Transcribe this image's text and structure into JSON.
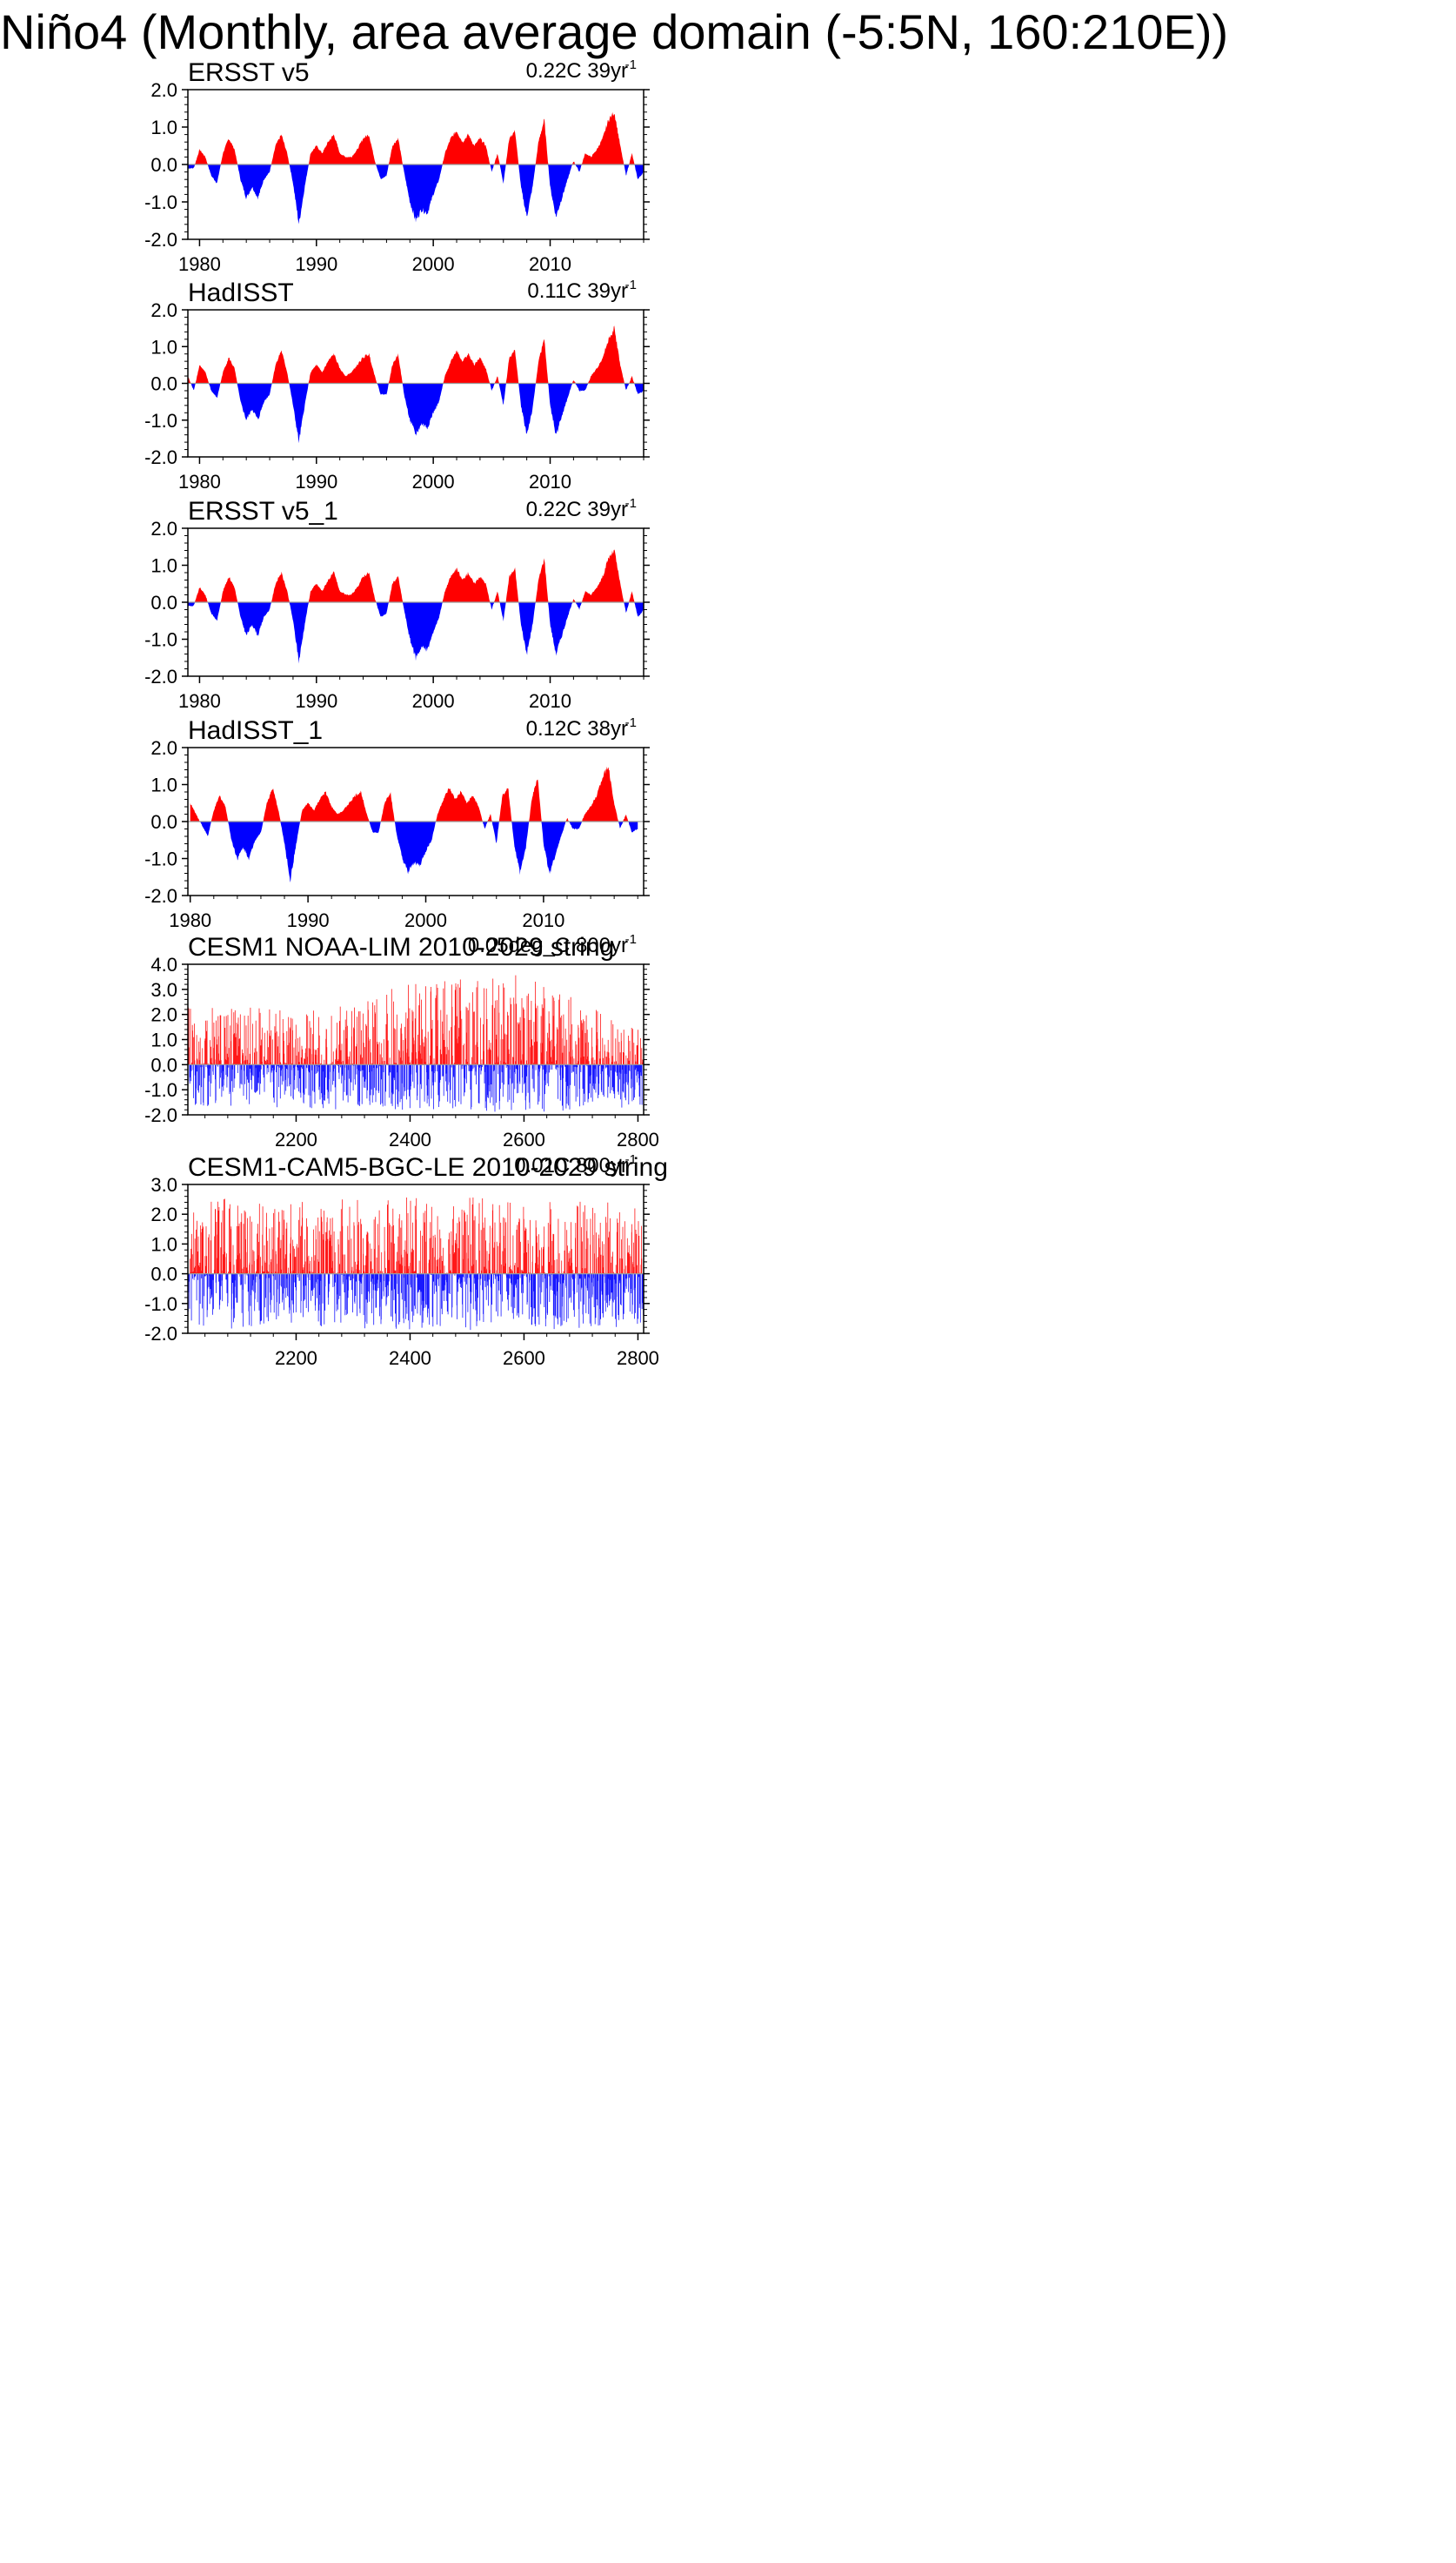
{
  "title": "Niño4 (Monthly, area average domain (-5:5N, 160:210E))",
  "colors": {
    "positive": "#ff0000",
    "negative": "#0000ff",
    "axis": "#000000",
    "zero_line": "#9a9a9a"
  },
  "chart_data": [
    {
      "type": "area",
      "name": "ERSST v5",
      "trend": {
        "text": "0.22C 39yr",
        "exp": "-1"
      },
      "xlim": [
        1979,
        2018
      ],
      "ylim": [
        -2.0,
        2.0
      ],
      "yticks": [
        -2.0,
        -1.0,
        0.0,
        1.0,
        2.0
      ],
      "yticklabels": [
        "-2.0",
        "-1.0",
        "0.0",
        "1.0",
        "2.0"
      ],
      "xticks": [
        1980,
        1990,
        2000,
        2010
      ],
      "xticklabels": [
        "1980",
        "1990",
        "2000",
        "2010"
      ],
      "x": [
        1979.0,
        1979.5,
        1980.0,
        1980.5,
        1981.0,
        1981.5,
        1982.0,
        1982.5,
        1983.0,
        1983.5,
        1984.0,
        1984.5,
        1985.0,
        1985.5,
        1986.0,
        1986.5,
        1987.0,
        1987.5,
        1988.0,
        1988.5,
        1989.0,
        1989.5,
        1990.0,
        1990.5,
        1991.0,
        1991.5,
        1992.0,
        1992.5,
        1993.0,
        1993.5,
        1994.0,
        1994.5,
        1995.0,
        1995.5,
        1996.0,
        1996.5,
        1997.0,
        1997.5,
        1998.0,
        1998.5,
        1999.0,
        1999.5,
        2000.0,
        2000.5,
        2001.0,
        2001.5,
        2002.0,
        2002.5,
        2003.0,
        2003.5,
        2004.0,
        2004.5,
        2005.0,
        2005.5,
        2006.0,
        2006.5,
        2007.0,
        2007.5,
        2008.0,
        2008.5,
        2009.0,
        2009.5,
        2010.0,
        2010.5,
        2011.0,
        2011.5,
        2012.0,
        2012.5,
        2013.0,
        2013.5,
        2014.0,
        2014.5,
        2015.0,
        2015.5,
        2016.0,
        2016.5,
        2017.0,
        2017.5,
        2018.0
      ],
      "values": [
        -0.1,
        -0.1,
        0.4,
        0.2,
        -0.3,
        -0.5,
        0.3,
        0.7,
        0.4,
        -0.4,
        -0.9,
        -0.6,
        -0.9,
        -0.4,
        -0.2,
        0.5,
        0.8,
        0.3,
        -0.5,
        -1.6,
        -0.6,
        0.3,
        0.5,
        0.3,
        0.6,
        0.8,
        0.3,
        0.2,
        0.2,
        0.4,
        0.7,
        0.8,
        0.1,
        -0.4,
        -0.3,
        0.5,
        0.7,
        -0.2,
        -1.0,
        -1.5,
        -1.2,
        -1.3,
        -0.8,
        -0.4,
        0.3,
        0.7,
        0.9,
        0.6,
        0.8,
        0.5,
        0.7,
        0.5,
        -0.2,
        0.3,
        -0.5,
        0.7,
        0.9,
        -0.6,
        -1.4,
        -0.6,
        0.6,
        1.2,
        -0.6,
        -1.4,
        -0.9,
        -0.4,
        0.1,
        -0.2,
        0.3,
        0.2,
        0.4,
        0.7,
        1.2,
        1.4,
        0.5,
        -0.3,
        0.3,
        -0.4,
        -0.2
      ]
    },
    {
      "type": "area",
      "name": "HadISST",
      "trend": {
        "text": "0.11C 39yr",
        "exp": "-1"
      },
      "xlim": [
        1979,
        2018
      ],
      "ylim": [
        -2.0,
        2.0
      ],
      "yticks": [
        -2.0,
        -1.0,
        0.0,
        1.0,
        2.0
      ],
      "yticklabels": [
        "-2.0",
        "-1.0",
        "0.0",
        "1.0",
        "2.0"
      ],
      "xticks": [
        1980,
        1990,
        2000,
        2010
      ],
      "xticklabels": [
        "1980",
        "1990",
        "2000",
        "2010"
      ],
      "x": [
        1979.0,
        1979.5,
        1980.0,
        1980.5,
        1981.0,
        1981.5,
        1982.0,
        1982.5,
        1983.0,
        1983.5,
        1984.0,
        1984.5,
        1985.0,
        1985.5,
        1986.0,
        1986.5,
        1987.0,
        1987.5,
        1988.0,
        1988.5,
        1989.0,
        1989.5,
        1990.0,
        1990.5,
        1991.0,
        1991.5,
        1992.0,
        1992.5,
        1993.0,
        1993.5,
        1994.0,
        1994.5,
        1995.0,
        1995.5,
        1996.0,
        1996.5,
        1997.0,
        1997.5,
        1998.0,
        1998.5,
        1999.0,
        1999.5,
        2000.0,
        2000.5,
        2001.0,
        2001.5,
        2002.0,
        2002.5,
        2003.0,
        2003.5,
        2004.0,
        2004.5,
        2005.0,
        2005.5,
        2006.0,
        2006.5,
        2007.0,
        2007.5,
        2008.0,
        2008.5,
        2009.0,
        2009.5,
        2010.0,
        2010.5,
        2011.0,
        2011.5,
        2012.0,
        2012.5,
        2013.0,
        2013.5,
        2014.0,
        2014.5,
        2015.0,
        2015.5,
        2016.0,
        2016.5,
        2017.0,
        2017.5,
        2018.0
      ],
      "values": [
        0.2,
        -0.2,
        0.5,
        0.3,
        -0.2,
        -0.4,
        0.3,
        0.7,
        0.4,
        -0.5,
        -1.0,
        -0.7,
        -1.0,
        -0.5,
        -0.3,
        0.5,
        0.9,
        0.3,
        -0.6,
        -1.6,
        -0.6,
        0.3,
        0.5,
        0.3,
        0.6,
        0.8,
        0.4,
        0.2,
        0.3,
        0.5,
        0.7,
        0.8,
        0.2,
        -0.3,
        -0.3,
        0.5,
        0.8,
        -0.3,
        -1.0,
        -1.4,
        -1.1,
        -1.2,
        -0.8,
        -0.5,
        0.2,
        0.6,
        0.9,
        0.6,
        0.8,
        0.5,
        0.7,
        0.4,
        -0.2,
        0.2,
        -0.6,
        0.7,
        0.9,
        -0.6,
        -1.4,
        -0.7,
        0.6,
        1.2,
        -0.6,
        -1.4,
        -0.9,
        -0.4,
        0.1,
        -0.2,
        -0.2,
        0.2,
        0.4,
        0.7,
        1.2,
        1.5,
        0.5,
        -0.2,
        0.2,
        -0.3,
        -0.2
      ]
    },
    {
      "type": "area",
      "name": "ERSST v5_1",
      "trend": {
        "text": "0.22C 39yr",
        "exp": "-1"
      },
      "xlim": [
        1979,
        2018
      ],
      "ylim": [
        -2.0,
        2.0
      ],
      "yticks": [
        -2.0,
        -1.0,
        0.0,
        1.0,
        2.0
      ],
      "yticklabels": [
        "-2.0",
        "-1.0",
        "0.0",
        "1.0",
        "2.0"
      ],
      "xticks": [
        1980,
        1990,
        2000,
        2010
      ],
      "xticklabels": [
        "1980",
        "1990",
        "2000",
        "2010"
      ],
      "x": [
        1979.0,
        1979.5,
        1980.0,
        1980.5,
        1981.0,
        1981.5,
        1982.0,
        1982.5,
        1983.0,
        1983.5,
        1984.0,
        1984.5,
        1985.0,
        1985.5,
        1986.0,
        1986.5,
        1987.0,
        1987.5,
        1988.0,
        1988.5,
        1989.0,
        1989.5,
        1990.0,
        1990.5,
        1991.0,
        1991.5,
        1992.0,
        1992.5,
        1993.0,
        1993.5,
        1994.0,
        1994.5,
        1995.0,
        1995.5,
        1996.0,
        1996.5,
        1997.0,
        1997.5,
        1998.0,
        1998.5,
        1999.0,
        1999.5,
        2000.0,
        2000.5,
        2001.0,
        2001.5,
        2002.0,
        2002.5,
        2003.0,
        2003.5,
        2004.0,
        2004.5,
        2005.0,
        2005.5,
        2006.0,
        2006.5,
        2007.0,
        2007.5,
        2008.0,
        2008.5,
        2009.0,
        2009.5,
        2010.0,
        2010.5,
        2011.0,
        2011.5,
        2012.0,
        2012.5,
        2013.0,
        2013.5,
        2014.0,
        2014.5,
        2015.0,
        2015.5,
        2016.0,
        2016.5,
        2017.0,
        2017.5,
        2018.0
      ],
      "values": [
        -0.1,
        -0.1,
        0.4,
        0.2,
        -0.3,
        -0.5,
        0.3,
        0.7,
        0.4,
        -0.4,
        -0.9,
        -0.6,
        -0.9,
        -0.4,
        -0.2,
        0.5,
        0.8,
        0.3,
        -0.5,
        -1.6,
        -0.6,
        0.3,
        0.5,
        0.3,
        0.6,
        0.8,
        0.3,
        0.2,
        0.2,
        0.4,
        0.7,
        0.8,
        0.1,
        -0.4,
        -0.3,
        0.5,
        0.7,
        -0.2,
        -1.0,
        -1.5,
        -1.2,
        -1.3,
        -0.8,
        -0.4,
        0.3,
        0.7,
        0.9,
        0.6,
        0.8,
        0.5,
        0.7,
        0.5,
        -0.2,
        0.3,
        -0.5,
        0.7,
        0.9,
        -0.6,
        -1.4,
        -0.6,
        0.6,
        1.2,
        -0.6,
        -1.4,
        -0.9,
        -0.4,
        0.1,
        -0.2,
        0.3,
        0.2,
        0.4,
        0.7,
        1.2,
        1.4,
        0.5,
        -0.3,
        0.3,
        -0.4,
        -0.2
      ]
    },
    {
      "type": "area",
      "name": "HadISST_1",
      "trend": {
        "text": "0.12C 38yr",
        "exp": "-1"
      },
      "xlim": [
        1979.8,
        2018.5
      ],
      "ylim": [
        -2.0,
        2.0
      ],
      "yticks": [
        -2.0,
        -1.0,
        0.0,
        1.0,
        2.0
      ],
      "yticklabels": [
        "-2.0",
        "-1.0",
        "0.0",
        "1.0",
        "2.0"
      ],
      "xticks": [
        1980,
        1990,
        2000,
        2010
      ],
      "xticklabels": [
        "1980",
        "1990",
        "2000",
        "2010"
      ],
      "x": [
        1980.0,
        1980.5,
        1981.0,
        1981.5,
        1982.0,
        1982.5,
        1983.0,
        1983.5,
        1984.0,
        1984.5,
        1985.0,
        1985.5,
        1986.0,
        1986.5,
        1987.0,
        1987.5,
        1988.0,
        1988.5,
        1989.0,
        1989.5,
        1990.0,
        1990.5,
        1991.0,
        1991.5,
        1992.0,
        1992.5,
        1993.0,
        1993.5,
        1994.0,
        1994.5,
        1995.0,
        1995.5,
        1996.0,
        1996.5,
        1997.0,
        1997.5,
        1998.0,
        1998.5,
        1999.0,
        1999.5,
        2000.0,
        2000.5,
        2001.0,
        2001.5,
        2002.0,
        2002.5,
        2003.0,
        2003.5,
        2004.0,
        2004.5,
        2005.0,
        2005.5,
        2006.0,
        2006.5,
        2007.0,
        2007.5,
        2008.0,
        2008.5,
        2009.0,
        2009.5,
        2010.0,
        2010.5,
        2011.0,
        2011.5,
        2012.0,
        2012.5,
        2013.0,
        2013.5,
        2014.0,
        2014.5,
        2015.0,
        2015.5,
        2016.0,
        2016.5,
        2017.0,
        2017.5,
        2018.0
      ],
      "values": [
        0.5,
        0.2,
        -0.1,
        -0.4,
        0.3,
        0.7,
        0.4,
        -0.5,
        -1.0,
        -0.7,
        -1.0,
        -0.5,
        -0.3,
        0.5,
        0.9,
        0.3,
        -0.6,
        -1.6,
        -0.6,
        0.3,
        0.5,
        0.3,
        0.6,
        0.8,
        0.4,
        0.2,
        0.3,
        0.5,
        0.7,
        0.8,
        0.2,
        -0.3,
        -0.3,
        0.5,
        0.8,
        -0.3,
        -1.0,
        -1.4,
        -1.1,
        -1.2,
        -0.8,
        -0.5,
        0.2,
        0.6,
        0.9,
        0.6,
        0.8,
        0.5,
        0.7,
        0.4,
        -0.2,
        0.2,
        -0.6,
        0.7,
        0.9,
        -0.6,
        -1.4,
        -0.7,
        0.6,
        1.2,
        -0.6,
        -1.4,
        -0.9,
        -0.4,
        0.1,
        -0.2,
        -0.2,
        0.2,
        0.4,
        0.7,
        1.2,
        1.5,
        0.5,
        -0.2,
        0.2,
        -0.3,
        -0.2
      ]
    },
    {
      "type": "area",
      "name": "CESM1 NOAA-LIM 2010-2029 string",
      "trend": {
        "text": "0.05deg_C 800yr",
        "exp": "-1"
      },
      "xlim": [
        2010,
        2810
      ],
      "ylim": [
        -2.0,
        4.0
      ],
      "yticks": [
        -2.0,
        -1.0,
        0.0,
        1.0,
        2.0,
        3.0,
        4.0
      ],
      "yticklabels": [
        "-2.0",
        "-1.0",
        "0.0",
        "1.0",
        "2.0",
        "3.0",
        "4.0"
      ],
      "xticks": [
        2200,
        2400,
        2600,
        2800
      ],
      "xticklabels": [
        "2200",
        "2400",
        "2600",
        "2800"
      ],
      "x": [
        2010,
        2060,
        2110,
        2160,
        2210,
        2260,
        2310,
        2360,
        2410,
        2460,
        2510,
        2560,
        2610,
        2660,
        2710,
        2760,
        2810
      ],
      "max_values": [
        2.3,
        2.3,
        2.3,
        2.2,
        2.2,
        2.3,
        2.4,
        3.1,
        3.3,
        3.4,
        3.5,
        3.6,
        3.7,
        3.0,
        2.5,
        1.8,
        1.5
      ],
      "min_values": [
        -1.6,
        -1.7,
        -1.7,
        -1.7,
        -1.7,
        -1.8,
        -1.8,
        -1.8,
        -1.8,
        -1.8,
        -1.8,
        -1.9,
        -1.9,
        -1.9,
        -1.8,
        -1.8,
        -1.6
      ]
    },
    {
      "type": "area",
      "name": "CESM1-CAM5-BGC-LE 2010-2029 string",
      "trend": {
        "text": "0.01C 800yr",
        "exp": "-1"
      },
      "xlim": [
        2010,
        2810
      ],
      "ylim": [
        -2.0,
        3.0
      ],
      "yticks": [
        -2.0,
        -1.0,
        0.0,
        1.0,
        2.0,
        3.0
      ],
      "yticklabels": [
        "-2.0",
        "-1.0",
        "0.0",
        "1.0",
        "2.0",
        "3.0"
      ],
      "xticks": [
        2200,
        2400,
        2600,
        2800
      ],
      "xticklabels": [
        "2200",
        "2400",
        "2600",
        "2800"
      ],
      "x": [
        2010,
        2060,
        2110,
        2160,
        2210,
        2260,
        2310,
        2360,
        2410,
        2460,
        2510,
        2560,
        2610,
        2660,
        2710,
        2760,
        2810
      ],
      "max_values": [
        2.4,
        2.6,
        2.6,
        2.5,
        2.5,
        2.5,
        2.5,
        2.6,
        2.6,
        2.6,
        2.6,
        2.5,
        2.6,
        2.5,
        2.4,
        2.4,
        2.2
      ],
      "min_values": [
        -1.8,
        -1.8,
        -1.9,
        -1.8,
        -1.8,
        -1.8,
        -1.9,
        -1.9,
        -1.9,
        -1.9,
        -1.9,
        -1.8,
        -1.8,
        -1.9,
        -1.8,
        -1.8,
        -1.7
      ]
    }
  ]
}
